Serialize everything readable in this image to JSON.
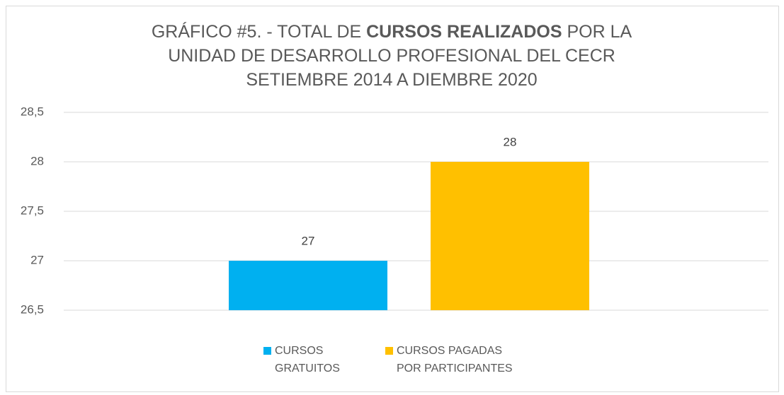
{
  "chart_data": {
    "type": "bar",
    "title": [
      [
        "GRÁFICO #5. - TOTAL DE ",
        "CURSOS REALIZADOS",
        " POR LA"
      ],
      [
        "UNIDAD DE DESARROLLO PROFESIONAL DEL CECR"
      ],
      [
        "SETIEMBRE 2014 A DIEMBRE 2020"
      ]
    ],
    "title_bold": [
      [
        false,
        true,
        false
      ],
      [
        false
      ],
      [
        false
      ]
    ],
    "categories": [
      null
    ],
    "series": [
      {
        "name": "CURSOS GRATUITOS",
        "color": "#00b0f0",
        "values": [
          27
        ]
      },
      {
        "name": "CURSOS PAGADAS POR PARTICIPANTES",
        "color": "#ffc000",
        "values": [
          28
        ]
      }
    ],
    "ylim": [
      26.5,
      28.5
    ],
    "yticks": [
      {
        "value": 26.5,
        "label": "26,5"
      },
      27,
      {
        "value": 27.5,
        "label": "27,5"
      },
      28,
      {
        "value": 28.5,
        "label": "28,5"
      }
    ],
    "grid": true,
    "legend": "bottom"
  }
}
